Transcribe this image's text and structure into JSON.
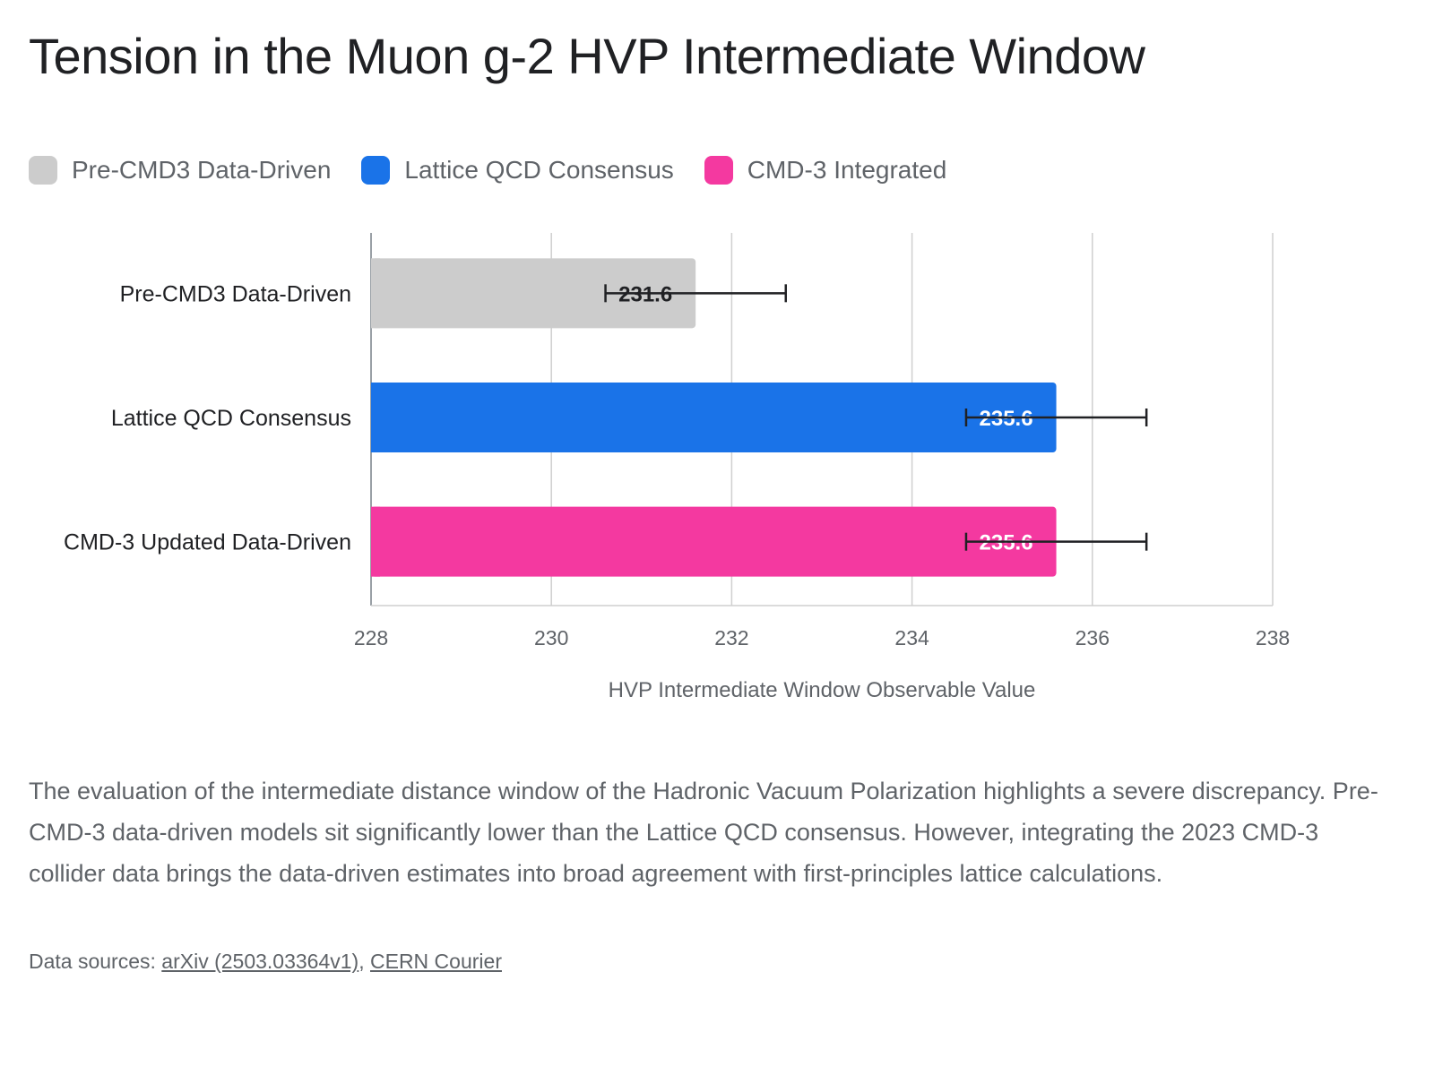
{
  "title": "Tension in the Muon g-2 HVP Intermediate Window",
  "legend": [
    {
      "label": "Pre-CMD3 Data-Driven",
      "color": "#cccccc"
    },
    {
      "label": "Lattice QCD Consensus",
      "color": "#1a73e8"
    },
    {
      "label": "CMD-3 Integrated",
      "color": "#f439a0"
    }
  ],
  "chart_data": {
    "type": "bar",
    "orientation": "horizontal",
    "categories": [
      "Pre-CMD3 Data-Driven",
      "Lattice QCD Consensus",
      "CMD-3 Updated Data-Driven"
    ],
    "values": [
      231.6,
      235.6,
      235.6
    ],
    "error": [
      1.0,
      1.0,
      1.0
    ],
    "colors": [
      "#cccccc",
      "#1a73e8",
      "#f439a0"
    ],
    "data_labels": [
      "231.6",
      "235.6",
      "235.6"
    ],
    "label_colors": [
      "#202124",
      "#ffffff",
      "#ffffff"
    ],
    "xlim": [
      228,
      238
    ],
    "xticks": [
      "228",
      "230",
      "232",
      "234",
      "236",
      "238"
    ],
    "xlabel": "HVP Intermediate Window Observable Value",
    "grid": true,
    "legend_position": "top-left"
  },
  "description": "The evaluation of the intermediate distance window of the Hadronic Vacuum Polarization highlights a severe discrepancy. Pre-CMD-3 data-driven models sit significantly lower than the Lattice QCD consensus. However, integrating the 2023 CMD-3 collider data brings the data-driven estimates into broad agreement with first-principles lattice calculations.",
  "sources": {
    "prefix": "Data sources: ",
    "links": [
      "arXiv (2503.03364v1)",
      "CERN Courier"
    ],
    "separator": ", "
  }
}
